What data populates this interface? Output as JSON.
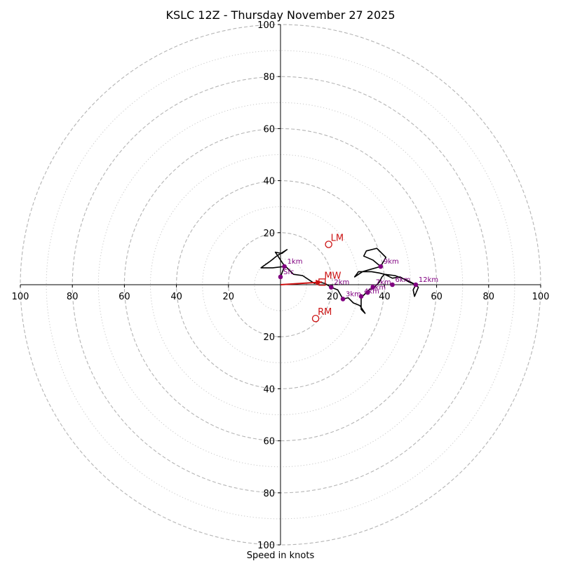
{
  "chart_data": {
    "type": "hodograph",
    "title": "KSLC 12Z - Thursday November 27 2025",
    "xlabel": "Speed in knots",
    "units": "knots",
    "range": [
      -100,
      100
    ],
    "rings_major": [
      20,
      40,
      60,
      80,
      100
    ],
    "rings_minor": [
      10,
      30,
      50,
      70,
      90
    ],
    "x_ticks": [
      {
        "value": -100,
        "label": "100"
      },
      {
        "value": -80,
        "label": "80"
      },
      {
        "value": -60,
        "label": "60"
      },
      {
        "value": -40,
        "label": "40"
      },
      {
        "value": -20,
        "label": "20"
      },
      {
        "value": 20,
        "label": "20"
      },
      {
        "value": 40,
        "label": "40"
      },
      {
        "value": 60,
        "label": "60"
      },
      {
        "value": 80,
        "label": "80"
      },
      {
        "value": 100,
        "label": "100"
      }
    ],
    "y_ticks": [
      {
        "value": 100,
        "label": "100"
      },
      {
        "value": 80,
        "label": "80"
      },
      {
        "value": 60,
        "label": "60"
      },
      {
        "value": 40,
        "label": "40"
      },
      {
        "value": 20,
        "label": "20"
      },
      {
        "value": -20,
        "label": "20"
      },
      {
        "value": -40,
        "label": "40"
      },
      {
        "value": -60,
        "label": "60"
      },
      {
        "value": -80,
        "label": "80"
      },
      {
        "value": -100,
        "label": "100"
      }
    ],
    "trace": [
      [
        0,
        3
      ],
      [
        1.5,
        7
      ],
      [
        -3,
        6.5
      ],
      [
        -7.5,
        6.5
      ],
      [
        -4,
        9
      ],
      [
        -1.5,
        11
      ],
      [
        2.5,
        13.5
      ],
      [
        0.5,
        12
      ],
      [
        -2,
        12.5
      ],
      [
        1,
        8
      ],
      [
        5,
        4
      ],
      [
        8.5,
        3.5
      ],
      [
        13,
        0.5
      ],
      [
        15,
        1
      ],
      [
        17,
        0.5
      ],
      [
        19.5,
        -1
      ],
      [
        22,
        -2
      ],
      [
        24,
        -5.5
      ],
      [
        26,
        -5
      ],
      [
        28,
        -7
      ],
      [
        30.5,
        -8
      ],
      [
        32.5,
        -11
      ],
      [
        31,
        -9.5
      ],
      [
        31,
        -5
      ],
      [
        32.5,
        -3.5
      ],
      [
        34,
        -2
      ],
      [
        36,
        -1
      ],
      [
        38,
        1
      ],
      [
        39,
        3
      ],
      [
        40,
        4
      ],
      [
        43,
        2.5
      ],
      [
        46,
        3
      ],
      [
        49.5,
        1
      ],
      [
        52,
        0
      ],
      [
        51,
        -2
      ],
      [
        51.5,
        -4.5
      ],
      [
        53,
        -1
      ],
      [
        52,
        0
      ],
      [
        48,
        2
      ],
      [
        44,
        3.5
      ],
      [
        40,
        4
      ],
      [
        38,
        4.5
      ],
      [
        35,
        5
      ],
      [
        30,
        5
      ],
      [
        28.5,
        3
      ],
      [
        31.5,
        5
      ],
      [
        35,
        6
      ],
      [
        38.5,
        7
      ],
      [
        40.5,
        10.5
      ],
      [
        37,
        14
      ],
      [
        33,
        13
      ],
      [
        32,
        11
      ],
      [
        35.5,
        9.5
      ],
      [
        38.5,
        7
      ]
    ],
    "height_markers": [
      {
        "label": "Sfc",
        "u": 0,
        "v": 3
      },
      {
        "label": "1km",
        "u": 1.5,
        "v": 7
      },
      {
        "label": "2km",
        "u": 19.5,
        "v": -1
      },
      {
        "label": "3km",
        "u": 24,
        "v": -5.5
      },
      {
        "label": "4km",
        "u": 31,
        "v": -4.5
      },
      {
        "label": "5km",
        "u": 33.5,
        "v": -3
      },
      {
        "label": "7km",
        "u": 35.5,
        "v": -1
      },
      {
        "label": "6km",
        "u": 43,
        "v": 0
      },
      {
        "label": "9km",
        "u": 38.5,
        "v": 7
      },
      {
        "label": "12km",
        "u": 52,
        "v": 0
      }
    ],
    "storm_motion": [
      {
        "label": "LM",
        "u": 18.5,
        "v": 15.5
      },
      {
        "label": "MW",
        "u": 16,
        "v": 1
      },
      {
        "label": "RM",
        "u": 13.5,
        "v": -13
      }
    ],
    "shear_vector": {
      "from": [
        0,
        0
      ],
      "to": [
        16,
        1
      ]
    }
  }
}
